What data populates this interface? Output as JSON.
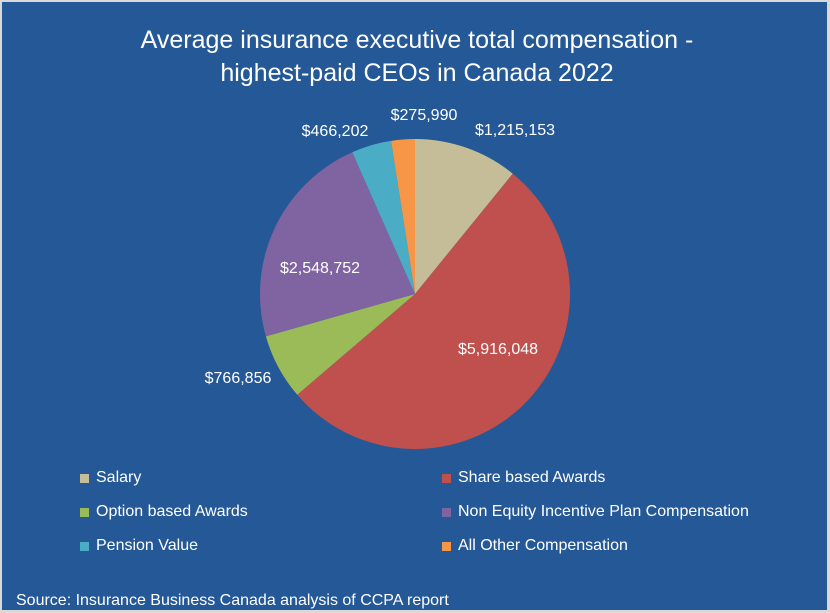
{
  "chart_data": {
    "type": "pie",
    "title": "Average insurance executive total compensation - highest-paid CEOs in Canada 2022",
    "title_lines": [
      "Average insurance executive total compensation -",
      "highest-paid CEOs in Canada 2022"
    ],
    "categories": [
      "Salary",
      "Share based Awards",
      "Option based Awards",
      "Non Equity Incentive Plan Compensation",
      "Pension Value",
      "All Other Compensation"
    ],
    "values": [
      1215153,
      5916048,
      766856,
      2548752,
      466202,
      275990
    ],
    "data_labels": [
      "$1,215,153",
      "$5,916,048",
      "$766,856",
      "$2,548,752",
      "$466,202",
      "$275,990"
    ],
    "colors": [
      "#c4bd97",
      "#c0504d",
      "#9bbb59",
      "#8064a2",
      "#4bacc6",
      "#f79646"
    ],
    "legend_position": "bottom"
  },
  "background": "#245896",
  "source": "Source: Insurance Business Canada analysis of CCPA report"
}
